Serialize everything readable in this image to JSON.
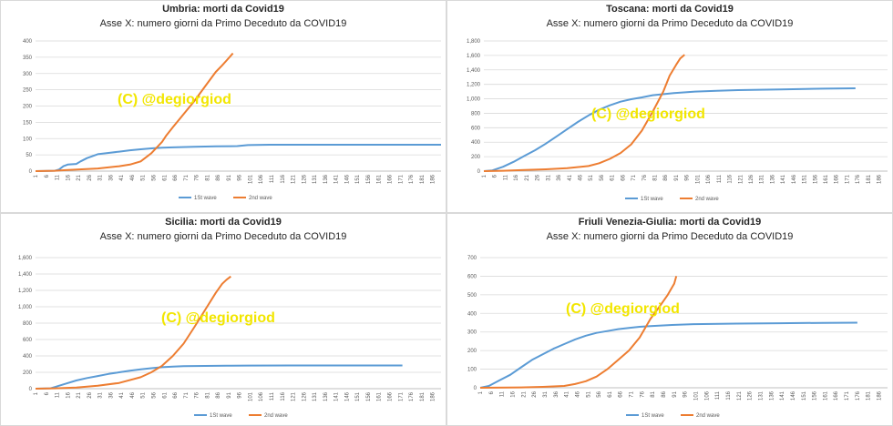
{
  "watermark": "(C) @degiorgiod",
  "colors": {
    "wave1": "#5b9bd5",
    "wave2": "#ed7d31",
    "watermark": "#f2e600",
    "grid": "#d9d9d9"
  },
  "chart_data": [
    {
      "type": "line",
      "title": "Umbria: morti da Covid19",
      "subtitle": "Asse X: numero giorni da Primo Deceduto da COVID19",
      "xlabels": [
        "1",
        "6",
        "11",
        "16",
        "21",
        "26",
        "31",
        "36",
        "41",
        "46",
        "51",
        "56",
        "61",
        "66",
        "71",
        "76",
        "81",
        "86",
        "91",
        "96",
        "101",
        "106",
        "111",
        "116",
        "121",
        "126",
        "131",
        "136",
        "141",
        "146",
        "151",
        "156",
        "161",
        "166",
        "171",
        "176",
        "181",
        "186"
      ],
      "ylim": [
        0,
        400
      ],
      "yticks": [
        "0",
        "50",
        "100",
        "150",
        "200",
        "250",
        "300",
        "350",
        "400"
      ],
      "legend": "bottom",
      "series": [
        {
          "name": "1St wave",
          "x": [
            1,
            10,
            12,
            14,
            16,
            20,
            22,
            25,
            30,
            35,
            40,
            45,
            50,
            55,
            60,
            65,
            75,
            85,
            95,
            100,
            110,
            130,
            160,
            190
          ],
          "y": [
            0,
            1,
            5,
            15,
            20,
            22,
            30,
            40,
            52,
            56,
            60,
            64,
            67,
            70,
            72,
            73,
            75,
            76,
            77,
            80,
            81,
            81,
            81,
            81
          ]
        },
        {
          "name": "2nd wave",
          "x": [
            1,
            10,
            15,
            30,
            40,
            45,
            50,
            55,
            60,
            62,
            65,
            70,
            75,
            80,
            85,
            88,
            90,
            93
          ],
          "y": [
            0,
            1,
            3,
            8,
            15,
            20,
            30,
            55,
            90,
            110,
            135,
            175,
            215,
            260,
            305,
            325,
            340,
            362
          ]
        }
      ]
    },
    {
      "type": "line",
      "title": "Toscana: morti da Covid19",
      "subtitle": "Asse X: numero giorni da Primo Deceduto da COVID19",
      "xlabels": [
        "1",
        "6",
        "11",
        "16",
        "21",
        "26",
        "31",
        "36",
        "41",
        "46",
        "51",
        "56",
        "61",
        "66",
        "71",
        "76",
        "81",
        "86",
        "91",
        "96",
        "101",
        "106",
        "111",
        "116",
        "121",
        "126",
        "131",
        "136",
        "141",
        "146",
        "151",
        "156",
        "161",
        "166",
        "171",
        "176",
        "181",
        "186"
      ],
      "ylim": [
        0,
        1800
      ],
      "yticks": [
        "0",
        "200",
        "400",
        "600",
        "800",
        "1,000",
        "1,200",
        "1,400",
        "1,600",
        "1,800"
      ],
      "legend": "bottom",
      "series": [
        {
          "name": "1St wave",
          "x": [
            1,
            5,
            10,
            15,
            20,
            25,
            30,
            35,
            40,
            45,
            50,
            55,
            60,
            65,
            70,
            75,
            80,
            90,
            100,
            110,
            120,
            140,
            160,
            175
          ],
          "y": [
            0,
            10,
            60,
            130,
            210,
            290,
            380,
            480,
            580,
            680,
            770,
            850,
            910,
            960,
            995,
            1020,
            1050,
            1080,
            1100,
            1110,
            1120,
            1130,
            1140,
            1145
          ]
        },
        {
          "name": "2nd wave",
          "x": [
            1,
            10,
            20,
            30,
            40,
            50,
            55,
            60,
            65,
            70,
            75,
            80,
            85,
            88,
            91,
            93,
            95
          ],
          "y": [
            0,
            5,
            15,
            25,
            40,
            70,
            110,
            170,
            250,
            370,
            560,
            820,
            1100,
            1320,
            1470,
            1560,
            1610
          ]
        }
      ]
    },
    {
      "type": "line",
      "title": "Sicilia: morti da Covid19",
      "subtitle": "Asse X: numero giorni da Primo Deceduto da COVID19",
      "xlabels": [
        "1",
        "6",
        "11",
        "16",
        "21",
        "26",
        "31",
        "36",
        "41",
        "46",
        "51",
        "56",
        "61",
        "66",
        "71",
        "76",
        "81",
        "86",
        "91",
        "96",
        "101",
        "106",
        "111",
        "116",
        "121",
        "126",
        "131",
        "136",
        "141",
        "146",
        "151",
        "156",
        "161",
        "166",
        "171",
        "176",
        "181",
        "186"
      ],
      "ylim": [
        0,
        1600
      ],
      "yticks": [
        "0",
        "200",
        "400",
        "600",
        "800",
        "1,000",
        "1,200",
        "1,400",
        "1,600"
      ],
      "legend": "bottom",
      "series": [
        {
          "name": "1St wave",
          "x": [
            1,
            8,
            10,
            15,
            20,
            25,
            30,
            35,
            40,
            45,
            50,
            55,
            60,
            65,
            70,
            80,
            90,
            100,
            120,
            140,
            160,
            172
          ],
          "y": [
            0,
            5,
            20,
            60,
            100,
            130,
            155,
            180,
            200,
            220,
            235,
            250,
            262,
            270,
            275,
            278,
            280,
            282,
            283,
            283,
            283,
            283
          ]
        },
        {
          "name": "2nd wave",
          "x": [
            1,
            10,
            20,
            30,
            40,
            50,
            55,
            60,
            65,
            70,
            75,
            80,
            85,
            88,
            90,
            92
          ],
          "y": [
            0,
            5,
            15,
            35,
            70,
            140,
            200,
            280,
            400,
            550,
            750,
            960,
            1170,
            1280,
            1330,
            1370
          ]
        }
      ]
    },
    {
      "type": "line",
      "title": "Friuli Venezia-Giulia: morti da Covid19",
      "subtitle": "Asse X: numero giorni da Primo Deceduto da COVID19",
      "xlabels": [
        "1",
        "6",
        "11",
        "16",
        "21",
        "26",
        "31",
        "36",
        "41",
        "46",
        "51",
        "56",
        "61",
        "66",
        "71",
        "76",
        "81",
        "86",
        "91",
        "96",
        "101",
        "106",
        "111",
        "116",
        "121",
        "126",
        "131",
        "136",
        "141",
        "146",
        "151",
        "156",
        "161",
        "166",
        "171",
        "176",
        "181",
        "186"
      ],
      "ylim": [
        0,
        700
      ],
      "yticks": [
        "0",
        "100",
        "200",
        "300",
        "400",
        "500",
        "600",
        "700"
      ],
      "legend": "bottom",
      "series": [
        {
          "name": "1St wave",
          "x": [
            1,
            5,
            10,
            15,
            20,
            25,
            30,
            35,
            40,
            45,
            50,
            55,
            60,
            65,
            70,
            75,
            80,
            90,
            100,
            120,
            140,
            160,
            176
          ],
          "y": [
            0,
            10,
            40,
            70,
            110,
            150,
            180,
            210,
            235,
            260,
            280,
            295,
            305,
            315,
            322,
            328,
            332,
            338,
            342,
            345,
            347,
            349,
            350
          ]
        },
        {
          "name": "2nd wave",
          "x": [
            1,
            20,
            30,
            40,
            45,
            50,
            55,
            60,
            65,
            70,
            75,
            80,
            85,
            88,
            90,
            91,
            92
          ],
          "y": [
            0,
            2,
            5,
            10,
            20,
            35,
            60,
            100,
            150,
            200,
            270,
            370,
            450,
            500,
            540,
            560,
            600
          ]
        }
      ]
    }
  ]
}
